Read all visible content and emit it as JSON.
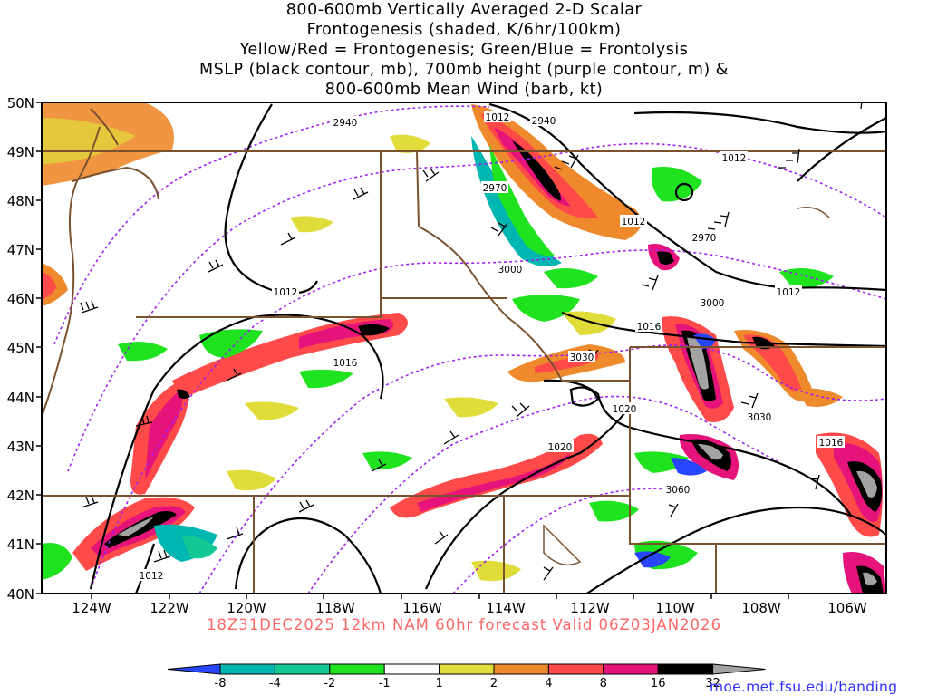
{
  "title": {
    "lines": [
      "800-600mb Vertically Averaged 2-D Scalar",
      "Frontogenesis (shaded, K/6hr/100km)",
      "Yellow/Red = Frontogenesis;  Green/Blue = Frontolysis",
      "MSLP (black contour, mb), 700mb height (purple contour, m) &",
      "800-600mb Mean Wind (barb, kt)"
    ]
  },
  "axes": {
    "lat_labels": [
      "50N",
      "49N",
      "48N",
      "47N",
      "46N",
      "45N",
      "44N",
      "43N",
      "42N",
      "41N",
      "40N"
    ],
    "lon_labels": [
      "124W",
      "122W",
      "120W",
      "118W",
      "116W",
      "114W",
      "112W",
      "110W",
      "108W",
      "106W"
    ]
  },
  "colorbar": {
    "labels": [
      "-8",
      "-4",
      "-2",
      "-1",
      "1",
      "2",
      "4",
      "8",
      "16",
      "32"
    ],
    "colors": [
      "#2845ff",
      "#00b6b0",
      "#12c993",
      "#1ee31e",
      "#ffffff",
      "#e0dd3a",
      "#ee8a2c",
      "#ff4a4a",
      "#e6147a",
      "#000000",
      "#a3a3a3"
    ]
  },
  "mslp_labels": [
    "1012",
    "1012",
    "1012",
    "1012",
    "1012",
    "1012",
    "1016",
    "1016",
    "1016",
    "1020",
    "1020"
  ],
  "height_labels": [
    "2940",
    "2940",
    "2970",
    "2970",
    "3000",
    "3000",
    "3030",
    "3030",
    "3060"
  ],
  "footer": "18Z31DEC2025 12km NAM 60hr forecast Valid 06Z03JAN2026",
  "credit": "moe.met.fsu.edu/banding"
}
